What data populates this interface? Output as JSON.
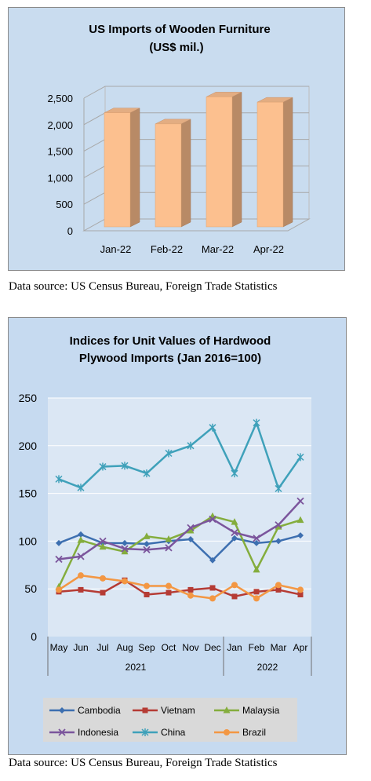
{
  "charts": {
    "furniture": {
      "title_line1": "US Imports of Wooden Furniture",
      "title_line2": "(US$ mil.)",
      "source": "Data source: US Census Bureau, Foreign Trade Statistics"
    },
    "plywood": {
      "title_line1": "Indices for Unit Values of Hardwood",
      "title_line2": "Plywood Imports (Jan 2016=100)",
      "year_2021": "2021",
      "year_2022": "2022",
      "source": "Data source: US Census Bureau, Foreign Trade Statistics"
    }
  },
  "chart_data": [
    {
      "type": "bar",
      "title": "US Imports of Wooden Furniture (US$ mil.)",
      "categories": [
        "Jan-22",
        "Feb-22",
        "Mar-22",
        "Apr-22"
      ],
      "values": [
        2150,
        1940,
        2450,
        2350
      ],
      "y_ticks": [
        "0",
        "500",
        "1,000",
        "1,500",
        "2,000",
        "2,500"
      ],
      "ylim": [
        0,
        2500
      ],
      "bar_color": "#fcc08f",
      "style": "3d"
    },
    {
      "type": "line",
      "title": "Indices for Unit Values of Hardwood Plywood Imports (Jan 2016=100)",
      "categories": [
        "May",
        "Jun",
        "Jul",
        "Aug",
        "Sep",
        "Oct",
        "Nov",
        "Dec",
        "Jan",
        "Feb",
        "Mar",
        "Apr"
      ],
      "year_groups": [
        {
          "label": "2021",
          "from": "May",
          "to": "Dec"
        },
        {
          "label": "2022",
          "from": "Jan",
          "to": "Apr"
        }
      ],
      "y_ticks": [
        "0",
        "50",
        "100",
        "150",
        "200",
        "250"
      ],
      "ylim": [
        0,
        250
      ],
      "legend_position": "bottom",
      "series": [
        {
          "name": "Cambodia",
          "color": "#3d6fb0",
          "marker": "diamond",
          "values": [
            98,
            107,
            98,
            98,
            97,
            100,
            102,
            80,
            103,
            98,
            100,
            106
          ]
        },
        {
          "name": "Vietnam",
          "color": "#b53b34",
          "marker": "square",
          "values": [
            47,
            49,
            46,
            59,
            44,
            46,
            49,
            51,
            42,
            47,
            49,
            44
          ]
        },
        {
          "name": "Malaysia",
          "color": "#84ad3d",
          "marker": "triangle",
          "values": [
            52,
            101,
            94,
            89,
            105,
            102,
            111,
            126,
            120,
            70,
            115,
            122
          ]
        },
        {
          "name": "Indonesia",
          "color": "#7b559c",
          "marker": "x",
          "values": [
            81,
            84,
            100,
            92,
            91,
            93,
            114,
            123,
            109,
            103,
            117,
            142
          ]
        },
        {
          "name": "China",
          "color": "#3fa1ba",
          "marker": "star",
          "values": [
            165,
            156,
            178,
            179,
            171,
            192,
            200,
            219,
            171,
            224,
            155,
            188
          ]
        },
        {
          "name": "Brazil",
          "color": "#f39743",
          "marker": "circle",
          "values": [
            49,
            64,
            61,
            58,
            53,
            53,
            43,
            40,
            54,
            40,
            54,
            49
          ]
        }
      ]
    }
  ]
}
